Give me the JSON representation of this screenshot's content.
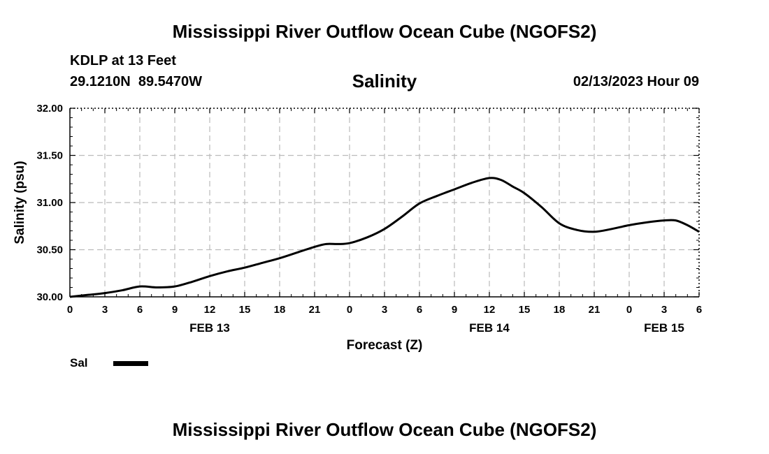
{
  "header": {
    "title": "Mississippi River Outflow Ocean Cube (NGOFS2)",
    "station": "KDLP at 13 Feet",
    "coords": "29.1210N  89.5470W",
    "chart_title": "Salinity",
    "forecast_time": "02/13/2023 Hour 09"
  },
  "legend": {
    "label": "Sal",
    "color": "#000000"
  },
  "footer": {
    "title": "Mississippi River Outflow Ocean Cube (NGOFS2)"
  },
  "chart_data": {
    "type": "line",
    "title": "Salinity",
    "xlabel": "Forecast (Z)",
    "ylabel": "Salinity (psu)",
    "xlim": [
      0,
      54
    ],
    "ylim": [
      30.0,
      32.0
    ],
    "grid": true,
    "x_ticks": [
      0,
      3,
      6,
      9,
      12,
      15,
      18,
      21,
      24,
      27,
      30,
      33,
      36,
      39,
      42,
      45,
      48,
      51,
      54
    ],
    "x_tick_labels": [
      "0",
      "3",
      "6",
      "9",
      "12",
      "15",
      "18",
      "21",
      "0",
      "3",
      "6",
      "9",
      "12",
      "15",
      "18",
      "21",
      "0",
      "3",
      "6"
    ],
    "y_ticks": [
      30.0,
      30.5,
      31.0,
      31.5,
      32.0
    ],
    "y_tick_labels": [
      "30.00",
      "30.50",
      "31.00",
      "31.50",
      "32.00"
    ],
    "date_labels": [
      {
        "x": 12,
        "label": "FEB 13"
      },
      {
        "x": 36,
        "label": "FEB 14"
      },
      {
        "x": 51,
        "label": "FEB 15"
      }
    ],
    "series": [
      {
        "name": "Sal",
        "x": [
          0,
          1.5,
          3,
          4.5,
          6,
          7.5,
          9,
          10.5,
          12,
          13.5,
          15,
          16.5,
          18,
          19.5,
          21,
          22,
          23,
          24,
          25.5,
          27,
          28.5,
          30,
          31.5,
          33,
          34.5,
          36,
          37,
          38,
          39,
          40.5,
          42,
          43.5,
          45,
          46.5,
          48,
          49.5,
          51,
          52,
          53,
          54
        ],
        "y": [
          30.0,
          30.02,
          30.04,
          30.07,
          30.11,
          30.1,
          30.11,
          30.16,
          30.22,
          30.27,
          30.31,
          30.36,
          30.41,
          30.47,
          30.53,
          30.56,
          30.56,
          30.57,
          30.63,
          30.72,
          30.85,
          30.99,
          31.07,
          31.14,
          31.21,
          31.26,
          31.24,
          31.17,
          31.1,
          30.95,
          30.78,
          30.71,
          30.69,
          30.72,
          30.76,
          30.79,
          30.81,
          30.81,
          30.76,
          30.69
        ]
      }
    ]
  }
}
